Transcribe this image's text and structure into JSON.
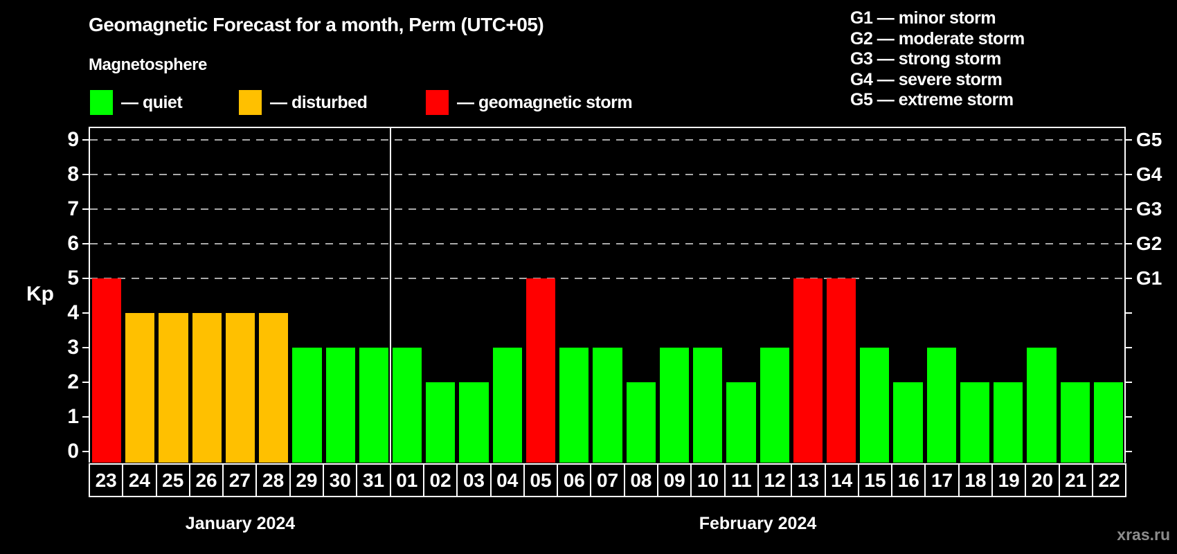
{
  "header": {
    "title": "Geomagnetic Forecast for a month, Perm (UTC+05)",
    "subtitle": "Magnetosphere"
  },
  "legend": {
    "items": [
      {
        "key": "quiet",
        "label": "— quiet",
        "color": "#00ff00"
      },
      {
        "key": "disturbed",
        "label": "— disturbed",
        "color": "#ffc000"
      },
      {
        "key": "storm",
        "label": "— geomagnetic storm",
        "color": "#ff0000"
      }
    ]
  },
  "g_scale_legend": {
    "lines": [
      "G1 — minor storm",
      "G2 — moderate storm",
      "G3 — strong storm",
      "G4 — severe storm",
      "G5 — extreme storm"
    ]
  },
  "axes": {
    "kp_label": "Kp",
    "left_tick_labels": [
      "0",
      "1",
      "2",
      "3",
      "4",
      "5",
      "6",
      "7",
      "8",
      "9"
    ],
    "right_labels": [
      {
        "label": "G1",
        "kp": 5
      },
      {
        "label": "G2",
        "kp": 6
      },
      {
        "label": "G3",
        "kp": 7
      },
      {
        "label": "G4",
        "kp": 8
      },
      {
        "label": "G5",
        "kp": 9
      }
    ]
  },
  "watermark": "xras.ru",
  "chart_data": {
    "type": "bar",
    "title": "Geomagnetic Forecast for a month, Perm (UTC+05)",
    "ylabel": "Kp",
    "ylim": [
      0,
      9.4
    ],
    "grid": "horizontal dashed lines at Kp 5-9 only",
    "gridlines_at": [
      5,
      6,
      7,
      8,
      9
    ],
    "legend_position": "top-left",
    "categories": [
      "23",
      "24",
      "25",
      "26",
      "27",
      "28",
      "29",
      "30",
      "31",
      "01",
      "02",
      "03",
      "04",
      "05",
      "06",
      "07",
      "08",
      "09",
      "10",
      "11",
      "12",
      "13",
      "14",
      "15",
      "16",
      "17",
      "18",
      "19",
      "20",
      "21",
      "22"
    ],
    "values": [
      5,
      4,
      4,
      4,
      4,
      4,
      3,
      3,
      3,
      3,
      2,
      2,
      3,
      5,
      3,
      3,
      2,
      3,
      3,
      2,
      3,
      5,
      5,
      3,
      2,
      3,
      2,
      2,
      3,
      2,
      2
    ],
    "statuses": [
      "storm",
      "disturbed",
      "disturbed",
      "disturbed",
      "disturbed",
      "disturbed",
      "quiet",
      "quiet",
      "quiet",
      "quiet",
      "quiet",
      "quiet",
      "quiet",
      "storm",
      "quiet",
      "quiet",
      "quiet",
      "quiet",
      "quiet",
      "quiet",
      "quiet",
      "storm",
      "storm",
      "quiet",
      "quiet",
      "quiet",
      "quiet",
      "quiet",
      "quiet",
      "quiet",
      "quiet"
    ],
    "status_colors": {
      "quiet": "#00ff00",
      "disturbed": "#ffc000",
      "storm": "#ff0000"
    },
    "months": [
      {
        "label": "January 2024",
        "days": 9
      },
      {
        "label": "February 2024",
        "days": 22
      }
    ]
  }
}
